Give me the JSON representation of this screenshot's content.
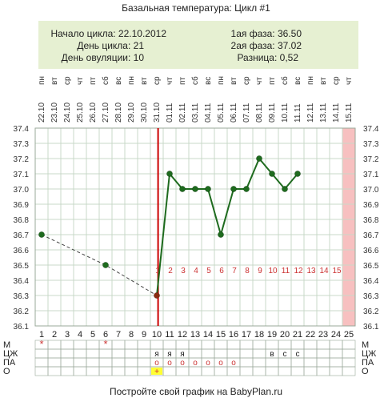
{
  "title": "Базальная температура: Цикл #1",
  "info": {
    "cycle_start": "Начало цикла: 22.10.2012",
    "cycle_day": "День цикла: 21",
    "ovulation_day": "День овуляции: 10",
    "phase1": "1ая фаза: 36.50",
    "phase2": "2ая фаза: 37.02",
    "difference": "Разница: 0,52"
  },
  "footer": "Постройте свой график на BabyPlan.ru",
  "colors": {
    "info_bg": "#e6f0d2",
    "line": "#1e6b1e",
    "coverline": "#cc0000",
    "phase_day_number": "#cc3333",
    "today_band": "#f7c0c0",
    "grid": "#c8d8c8",
    "ovulation_box": "#ffff33"
  },
  "columns": {
    "dates": [
      "22.10",
      "23.10",
      "24.10",
      "25.10",
      "26.10",
      "27.10",
      "28.10",
      "29.10",
      "30.10",
      "31.10",
      "01.11",
      "02.11",
      "03.11",
      "04.11",
      "05.11",
      "06.11",
      "07.11",
      "08.11",
      "09.11",
      "10.11",
      "11.11",
      "12.11",
      "13.11",
      "14.11",
      "15.11"
    ],
    "weekdays": [
      "пн",
      "вт",
      "ср",
      "чт",
      "пт",
      "сб",
      "вс",
      "пн",
      "вт",
      "ср",
      "чт",
      "пт",
      "сб",
      "вс",
      "пн",
      "вт",
      "ср",
      "чт",
      "пт",
      "сб",
      "вс",
      "пн",
      "вт",
      "ср",
      "чт"
    ],
    "day_numbers": [
      "1",
      "2",
      "3",
      "4",
      "5",
      "6",
      "7",
      "8",
      "9",
      "10",
      "11",
      "12",
      "13",
      "14",
      "15",
      "16",
      "17",
      "18",
      "19",
      "20",
      "21",
      "22",
      "23",
      "24",
      "25"
    ],
    "phase2_day_labels": [
      "1",
      "2",
      "3",
      "4",
      "5",
      "6",
      "7",
      "8",
      "9",
      "10",
      "11",
      "12",
      "13",
      "14",
      "15"
    ]
  },
  "chart_data": {
    "type": "line",
    "ylim": [
      36.1,
      37.4
    ],
    "yticks": [
      "37.4",
      "37.3",
      "37.2",
      "37.1",
      "37.0",
      "36.9",
      "36.8",
      "36.7",
      "36.6",
      "36.5",
      "36.4",
      "36.3",
      "36.2",
      "36.1"
    ],
    "points": [
      {
        "day": 1,
        "temp": 36.7
      },
      {
        "day": 6,
        "temp": 36.5
      },
      {
        "day": 10,
        "temp": 36.3
      },
      {
        "day": 11,
        "temp": 37.1
      },
      {
        "day": 12,
        "temp": 37.0
      },
      {
        "day": 13,
        "temp": 37.0
      },
      {
        "day": 14,
        "temp": 37.0
      },
      {
        "day": 15,
        "temp": 36.7
      },
      {
        "day": 16,
        "temp": 37.0
      },
      {
        "day": 17,
        "temp": 37.0
      },
      {
        "day": 18,
        "temp": 37.2
      },
      {
        "day": 19,
        "temp": 37.1
      },
      {
        "day": 20,
        "temp": 37.0
      },
      {
        "day": 21,
        "temp": 37.1
      }
    ],
    "dashed_from_day": 1,
    "dashed_to_day": 10,
    "coverline_day": 10,
    "phase2_start_day": 10,
    "highlight_day": 25
  },
  "symptoms": {
    "row_labels": [
      "М",
      "ЦЖ",
      "ПА",
      "О"
    ],
    "marks": {
      "М": [
        {
          "day": 1,
          "text": "*"
        },
        {
          "day": 6,
          "text": "*"
        }
      ],
      "ЦЖ": [
        {
          "day": 10,
          "text": "я"
        },
        {
          "day": 11,
          "text": "я"
        },
        {
          "day": 12,
          "text": "я"
        },
        {
          "day": 19,
          "text": "в"
        },
        {
          "day": 20,
          "text": "с"
        },
        {
          "day": 21,
          "text": "с"
        }
      ],
      "ПА": [
        {
          "day": 10,
          "text": "о"
        },
        {
          "day": 11,
          "text": "о"
        },
        {
          "day": 12,
          "text": "о"
        },
        {
          "day": 13,
          "text": "о"
        },
        {
          "day": 14,
          "text": "о"
        },
        {
          "day": 15,
          "text": "о"
        },
        {
          "day": 16,
          "text": "о"
        }
      ],
      "О": [
        {
          "day": 10,
          "text": "+"
        }
      ]
    }
  }
}
